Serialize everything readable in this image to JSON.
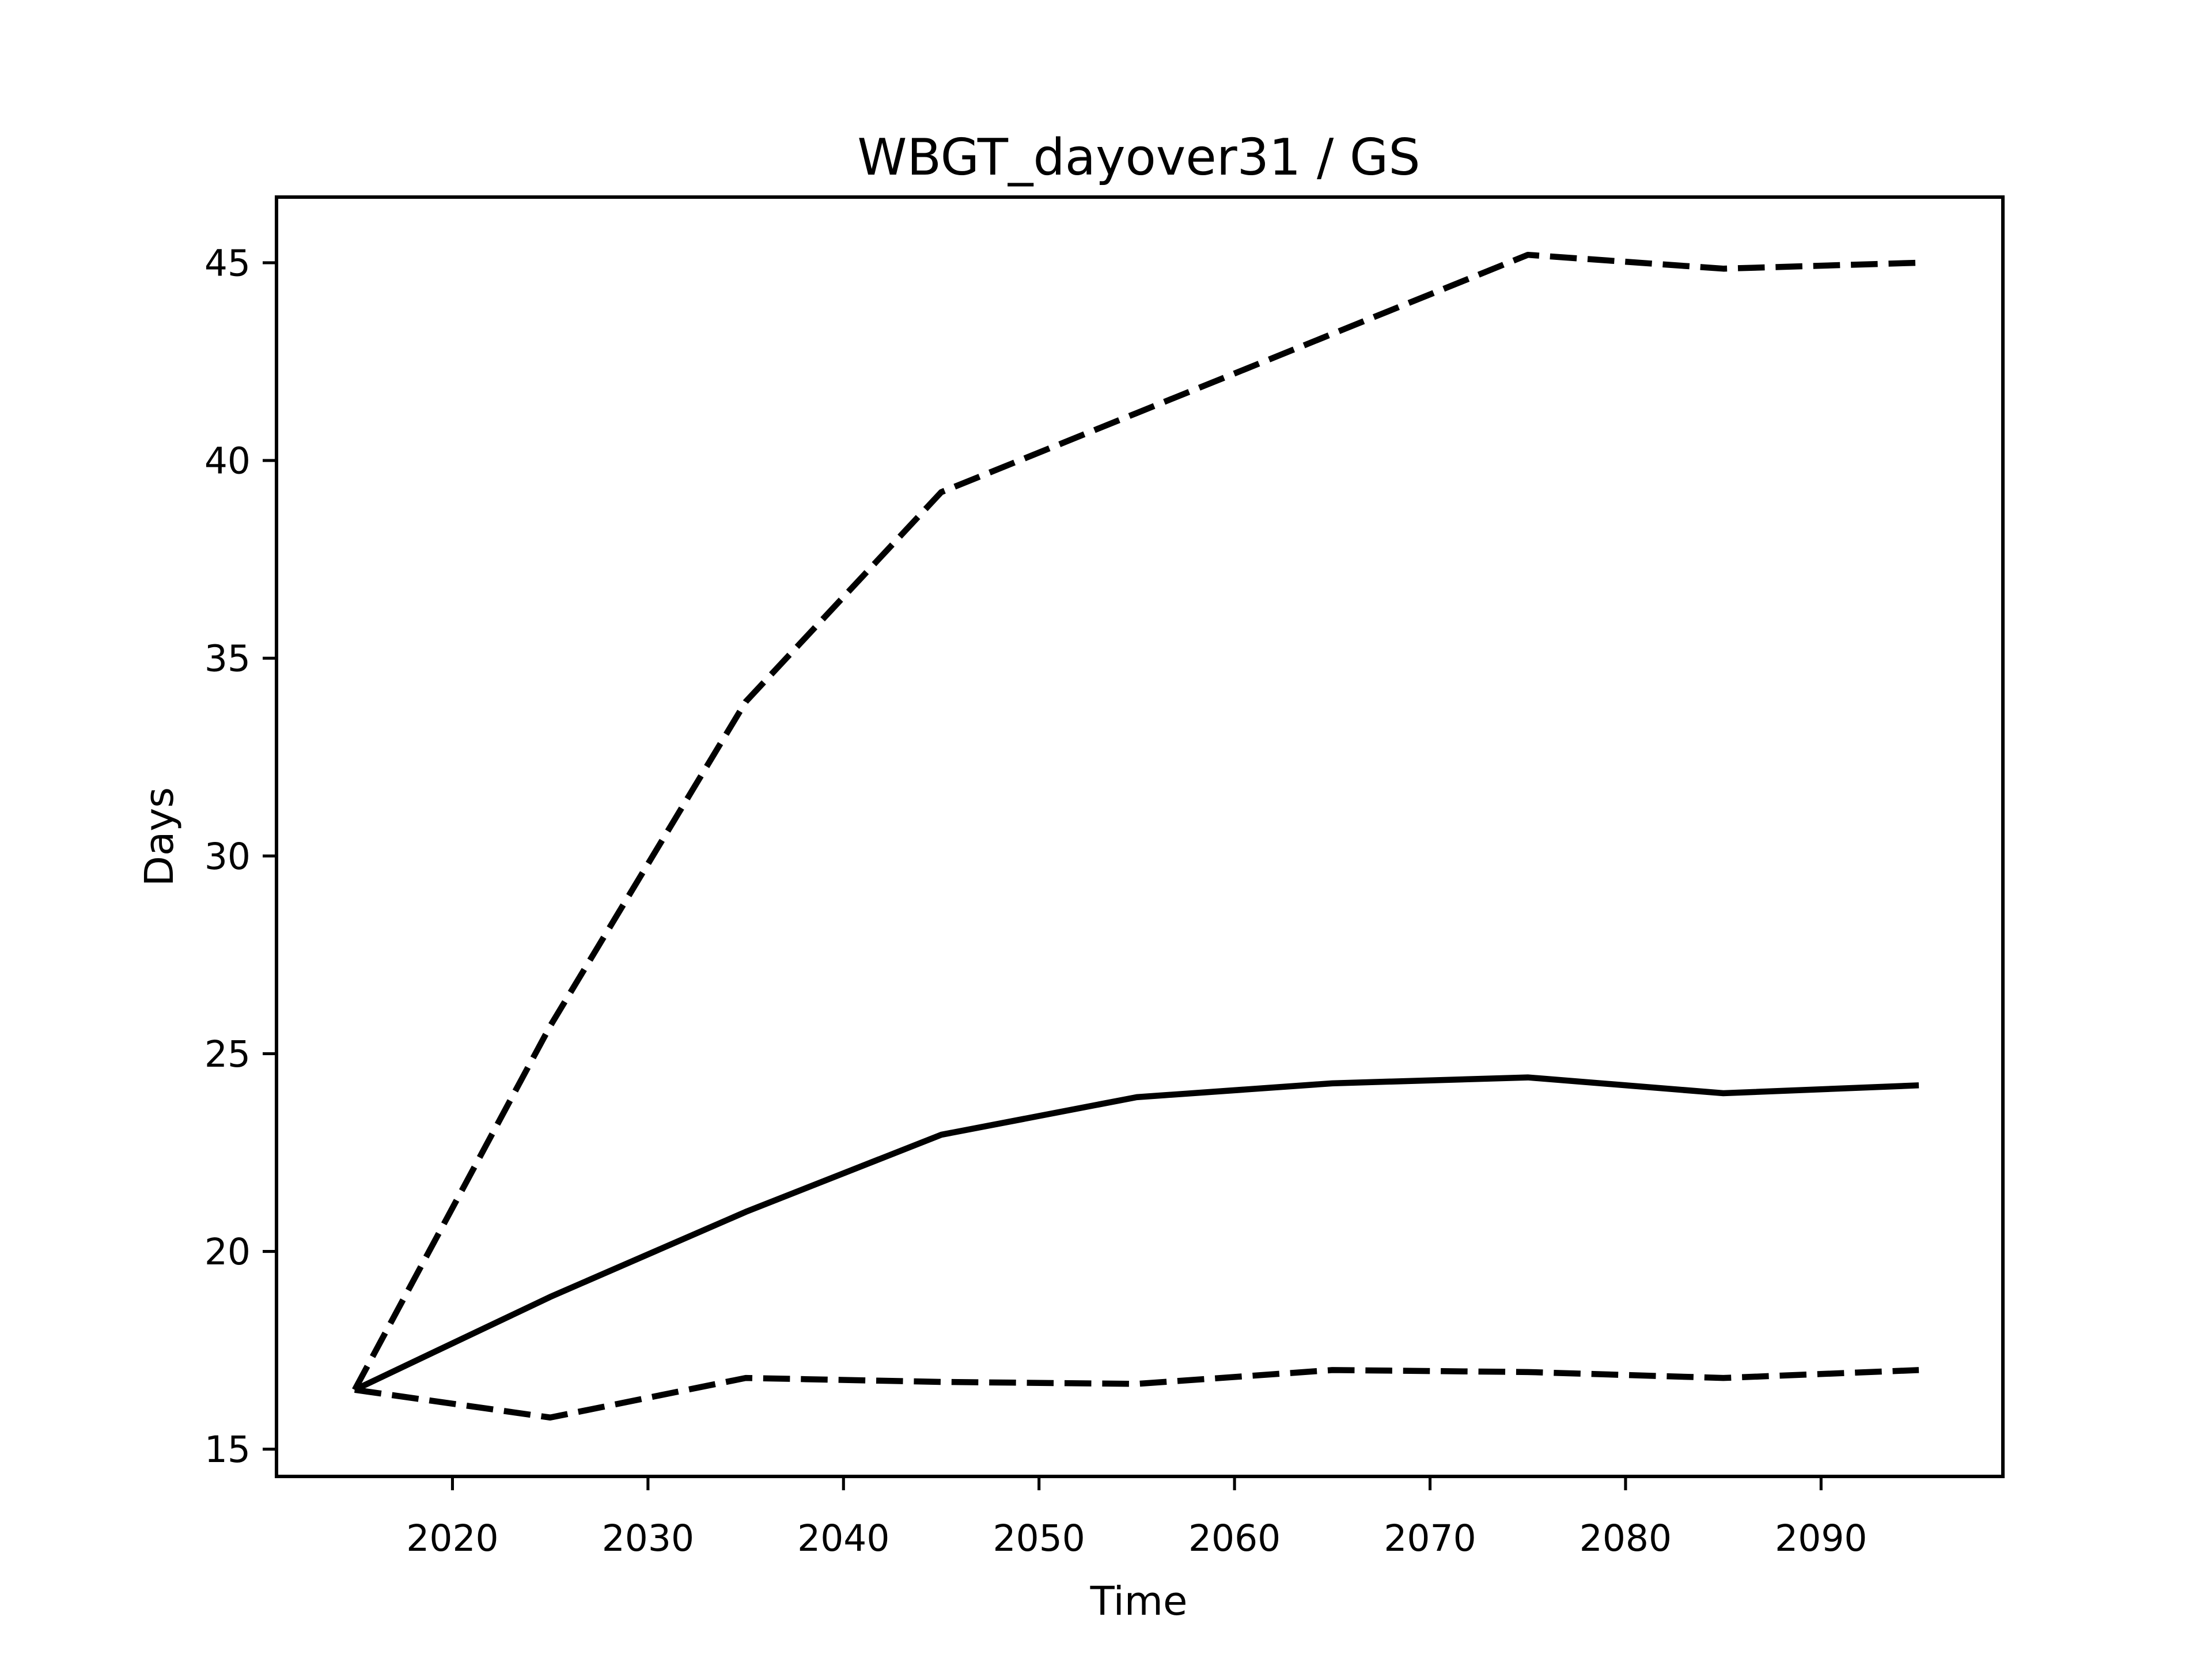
{
  "figure": {
    "title": "WBGT_dayover31 / GS",
    "background_color": "#ffffff",
    "line_color": "#000000"
  },
  "chart_data": {
    "type": "line",
    "title": "WBGT_dayover31 / GS",
    "xlabel": "Time",
    "ylabel": "Days",
    "x": [
      2015,
      2025,
      2035,
      2045,
      2055,
      2065,
      2075,
      2085,
      2095
    ],
    "series": [
      {
        "name": "upper-dashed",
        "style": "dashed",
        "values": [
          16.5,
          25.7,
          33.9,
          39.2,
          41.2,
          43.2,
          45.2,
          44.85,
          45.0
        ]
      },
      {
        "name": "middle-solid",
        "style": "solid",
        "values": [
          16.5,
          18.85,
          21.0,
          22.95,
          23.9,
          24.25,
          24.4,
          24.0,
          24.2
        ]
      },
      {
        "name": "lower-dashed",
        "style": "dashed",
        "values": [
          16.5,
          15.8,
          16.8,
          16.7,
          16.65,
          17.0,
          16.95,
          16.8,
          17.0
        ]
      }
    ],
    "xlim": [
      2011.0,
      2099.3
    ],
    "ylim": [
      14.31,
      46.66
    ],
    "xticks": [
      2020,
      2030,
      2040,
      2050,
      2060,
      2070,
      2080,
      2090
    ],
    "xtick_labels": [
      "2020",
      "2030",
      "2040",
      "2050",
      "2060",
      "2070",
      "2080",
      "2090"
    ],
    "yticks": [
      15,
      20,
      25,
      30,
      35,
      40,
      45
    ],
    "ytick_labels": [
      "15",
      "20",
      "25",
      "30",
      "35",
      "40",
      "45"
    ],
    "grid": false,
    "legend": "none"
  }
}
